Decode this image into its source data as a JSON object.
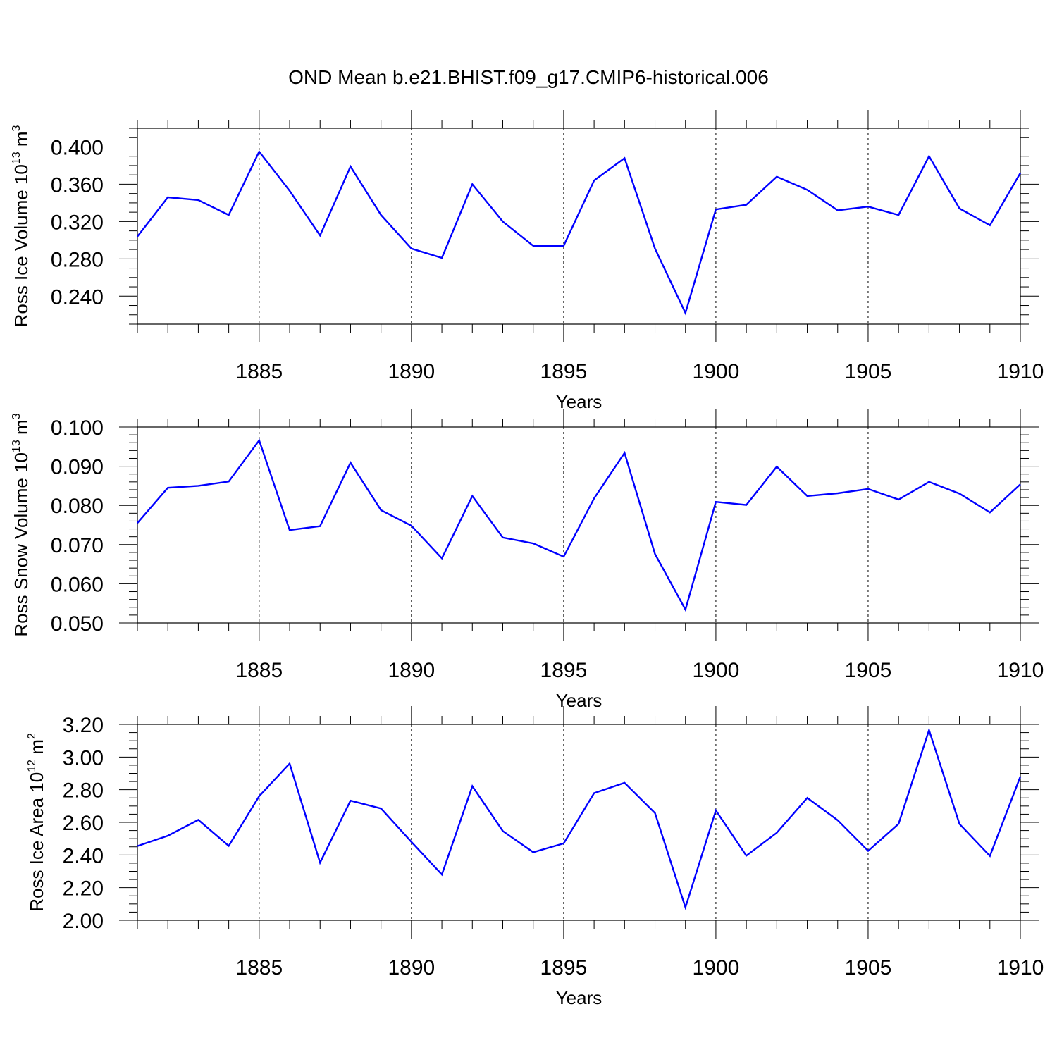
{
  "title": "OND Mean b.e21.BHIST.f09_g17.CMIP6-historical.006",
  "colors": {
    "series": "#0000ff",
    "axis": "#000000"
  },
  "chart_data": [
    {
      "type": "line",
      "ylabel_main": "Ross Ice Volume 10",
      "ylabel_exp": "13",
      "ylabel_unit": " m",
      "ylabel_unit_exp": "3",
      "xlabel": "Years",
      "xlim": [
        1881,
        1910
      ],
      "ylim": [
        0.21,
        0.42
      ],
      "yticks": [
        0.24,
        0.28,
        0.32,
        0.36,
        0.4
      ],
      "ytick_labels": [
        "0.240",
        "0.280",
        "0.320",
        "0.360",
        "0.400"
      ],
      "yminor_step": 0.01,
      "xticks": [
        1885,
        1890,
        1895,
        1900,
        1905,
        1910
      ],
      "xtick_labels": [
        "1885",
        "1890",
        "1895",
        "1900",
        "1905",
        "1910"
      ],
      "grid": "vertical-dashed",
      "x": [
        1881,
        1882,
        1883,
        1884,
        1885,
        1886,
        1887,
        1888,
        1889,
        1890,
        1891,
        1892,
        1893,
        1894,
        1895,
        1896,
        1897,
        1898,
        1899,
        1900,
        1901,
        1902,
        1903,
        1904,
        1905,
        1906,
        1907,
        1908,
        1909,
        1910
      ],
      "values": [
        0.304,
        0.346,
        0.343,
        0.327,
        0.395,
        0.353,
        0.305,
        0.379,
        0.327,
        0.291,
        0.281,
        0.36,
        0.32,
        0.294,
        0.294,
        0.364,
        0.388,
        0.291,
        0.222,
        0.333,
        0.338,
        0.368,
        0.354,
        0.332,
        0.336,
        0.327,
        0.39,
        0.334,
        0.316,
        0.372
      ]
    },
    {
      "type": "line",
      "ylabel_main": "Ross Snow Volume 10",
      "ylabel_exp": "13",
      "ylabel_unit": " m",
      "ylabel_unit_exp": "3",
      "xlabel": "Years",
      "xlim": [
        1881,
        1910
      ],
      "ylim": [
        0.05,
        0.1
      ],
      "yticks": [
        0.05,
        0.06,
        0.07,
        0.08,
        0.09,
        0.1
      ],
      "ytick_labels": [
        "0.050",
        "0.060",
        "0.070",
        "0.080",
        "0.090",
        "0.100"
      ],
      "yminor_step": 0.002,
      "xticks": [
        1885,
        1890,
        1895,
        1900,
        1905,
        1910
      ],
      "xtick_labels": [
        "1885",
        "1890",
        "1895",
        "1900",
        "1905",
        "1910"
      ],
      "grid": "vertical-dashed",
      "x": [
        1881,
        1882,
        1883,
        1884,
        1885,
        1886,
        1887,
        1888,
        1889,
        1890,
        1891,
        1892,
        1893,
        1894,
        1895,
        1896,
        1897,
        1898,
        1899,
        1900,
        1901,
        1902,
        1903,
        1904,
        1905,
        1906,
        1907,
        1908,
        1909,
        1910
      ],
      "values": [
        0.0755,
        0.0845,
        0.085,
        0.0861,
        0.0966,
        0.0737,
        0.0747,
        0.0909,
        0.0788,
        0.0748,
        0.0665,
        0.0824,
        0.0718,
        0.0703,
        0.0669,
        0.0818,
        0.0934,
        0.0676,
        0.0534,
        0.0809,
        0.0801,
        0.0899,
        0.0824,
        0.0831,
        0.0842,
        0.0815,
        0.086,
        0.083,
        0.0782,
        0.0854
      ]
    },
    {
      "type": "line",
      "ylabel_main": "Ross Ice Area 10",
      "ylabel_exp": "12",
      "ylabel_unit": " m",
      "ylabel_unit_exp": "2",
      "xlabel": "Years",
      "xlim": [
        1881,
        1910
      ],
      "ylim": [
        2.0,
        3.2
      ],
      "yticks": [
        2.0,
        2.2,
        2.4,
        2.6,
        2.8,
        3.0,
        3.2
      ],
      "ytick_labels": [
        "2.00",
        "2.20",
        "2.40",
        "2.60",
        "2.80",
        "3.00",
        "3.20"
      ],
      "yminor_step": 0.05,
      "xticks": [
        1885,
        1890,
        1895,
        1900,
        1905,
        1910
      ],
      "xtick_labels": [
        "1885",
        "1890",
        "1895",
        "1900",
        "1905",
        "1910"
      ],
      "grid": "vertical-dashed",
      "x": [
        1881,
        1882,
        1883,
        1884,
        1885,
        1886,
        1887,
        1888,
        1889,
        1890,
        1891,
        1892,
        1893,
        1894,
        1895,
        1896,
        1897,
        1898,
        1899,
        1900,
        1901,
        1902,
        1903,
        1904,
        1905,
        1906,
        1907,
        1908,
        1909,
        1910
      ],
      "values": [
        2.455,
        2.518,
        2.615,
        2.456,
        2.76,
        2.96,
        2.353,
        2.733,
        2.685,
        2.48,
        2.28,
        2.822,
        2.547,
        2.417,
        2.471,
        2.779,
        2.842,
        2.657,
        2.079,
        2.673,
        2.396,
        2.536,
        2.75,
        2.613,
        2.425,
        2.591,
        3.165,
        2.59,
        2.394,
        2.88
      ]
    }
  ]
}
